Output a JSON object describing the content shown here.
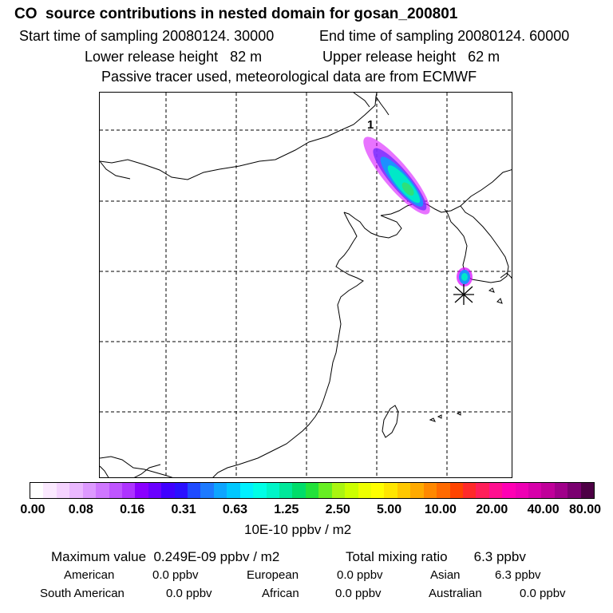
{
  "header": {
    "title": "CO  source contributions in nested domain for gosan_200801",
    "start_time": "Start time of sampling 20080124. 30000",
    "end_time": "End time of sampling 20080124. 60000",
    "lower_release": "Lower release height   82 m",
    "upper_release": "Upper release height   62 m",
    "tracer_note": "Passive tracer used, meteorological data are from ECMWF"
  },
  "map": {
    "plume_label": "1",
    "colors": {
      "magenta": "#d600ff",
      "cyan": "#00e8ff",
      "green": "#2de07a",
      "blue": "#1e90ff"
    }
  },
  "colorbar": {
    "colors": [
      "#ffffff",
      "#fbe9ff",
      "#f5d3ff",
      "#eab8ff",
      "#dd99ff",
      "#cf77ff",
      "#bf55ff",
      "#ae33ff",
      "#8a00ff",
      "#6a00ff",
      "#4000ff",
      "#2a10ff",
      "#1f4bff",
      "#1d7aff",
      "#0da5ff",
      "#00c8ff",
      "#00f0ff",
      "#00ffe6",
      "#00f5c8",
      "#00e89a",
      "#00dd6a",
      "#22e23a",
      "#66ee22",
      "#aaf511",
      "#ccff00",
      "#eeff00",
      "#ffff00",
      "#ffe600",
      "#ffc800",
      "#ffaa00",
      "#ff8800",
      "#ff6a00",
      "#ff4400",
      "#ff2a2a",
      "#ff1f5a",
      "#ff1090",
      "#ff00b4",
      "#ee00b4",
      "#d600aa",
      "#c0009a",
      "#a0008a",
      "#7a0070",
      "#4d0045"
    ],
    "tick_labels": [
      "0.00",
      "0.08",
      "0.16",
      "0.31",
      "0.63",
      "1.25",
      "2.50",
      "5.00",
      "10.00",
      "20.00",
      "40.00",
      "80.00"
    ],
    "unit": "10E-10 ppbv / m2"
  },
  "summary": {
    "max_value": "Maximum value  0.249E-09 ppbv / m2",
    "total_mixing": "Total mixing ratio       6.3 ppbv"
  },
  "regions": [
    {
      "name": "American",
      "value": "0.0 ppbv"
    },
    {
      "name": "European",
      "value": "0.0 ppbv"
    },
    {
      "name": "Asian",
      "value": "6.3 ppbv"
    },
    {
      "name": "South American",
      "value": "0.0 ppbv"
    },
    {
      "name": "African",
      "value": "0.0 ppbv"
    },
    {
      "name": "Australian",
      "value": "0.0 ppbv"
    }
  ]
}
